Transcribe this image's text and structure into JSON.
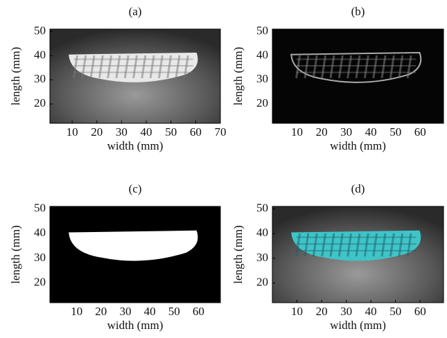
{
  "chart_data": [
    {
      "type": "image",
      "title": "(a)",
      "xlabel": "width (mm)",
      "ylabel": "length (mm)",
      "xlim": [
        1,
        70
      ],
      "xticks": [
        10,
        20,
        30,
        40,
        50,
        60,
        70
      ],
      "ylim": [
        12,
        51
      ],
      "yticks": [
        20,
        30,
        40,
        50
      ],
      "style": "gray"
    },
    {
      "type": "image",
      "title": "(b)",
      "xlabel": "width (mm)",
      "ylabel": "length (mm)",
      "xlim": [
        0,
        69.5
      ],
      "xticks": [
        10,
        20,
        30,
        40,
        50,
        60
      ],
      "ylim": [
        12,
        51
      ],
      "yticks": [
        20,
        30,
        40,
        50
      ],
      "style": "edges"
    },
    {
      "type": "image",
      "title": "(c)",
      "xlabel": "width (mm)",
      "ylabel": "length (mm)",
      "xlim": [
        -1,
        69
      ],
      "xticks": [
        10,
        20,
        30,
        40,
        50,
        60
      ],
      "ylim": [
        12,
        51
      ],
      "yticks": [
        20,
        30,
        40,
        50
      ],
      "style": "mask"
    },
    {
      "type": "image",
      "title": "(d)",
      "xlabel": "width (mm)",
      "ylabel": "length (mm)",
      "xlim": [
        0,
        69.5
      ],
      "xticks": [
        10,
        20,
        30,
        40,
        50,
        60
      ],
      "ylim": [
        12,
        51
      ],
      "yticks": [
        20,
        30,
        40,
        50
      ],
      "style": "overlay"
    }
  ]
}
